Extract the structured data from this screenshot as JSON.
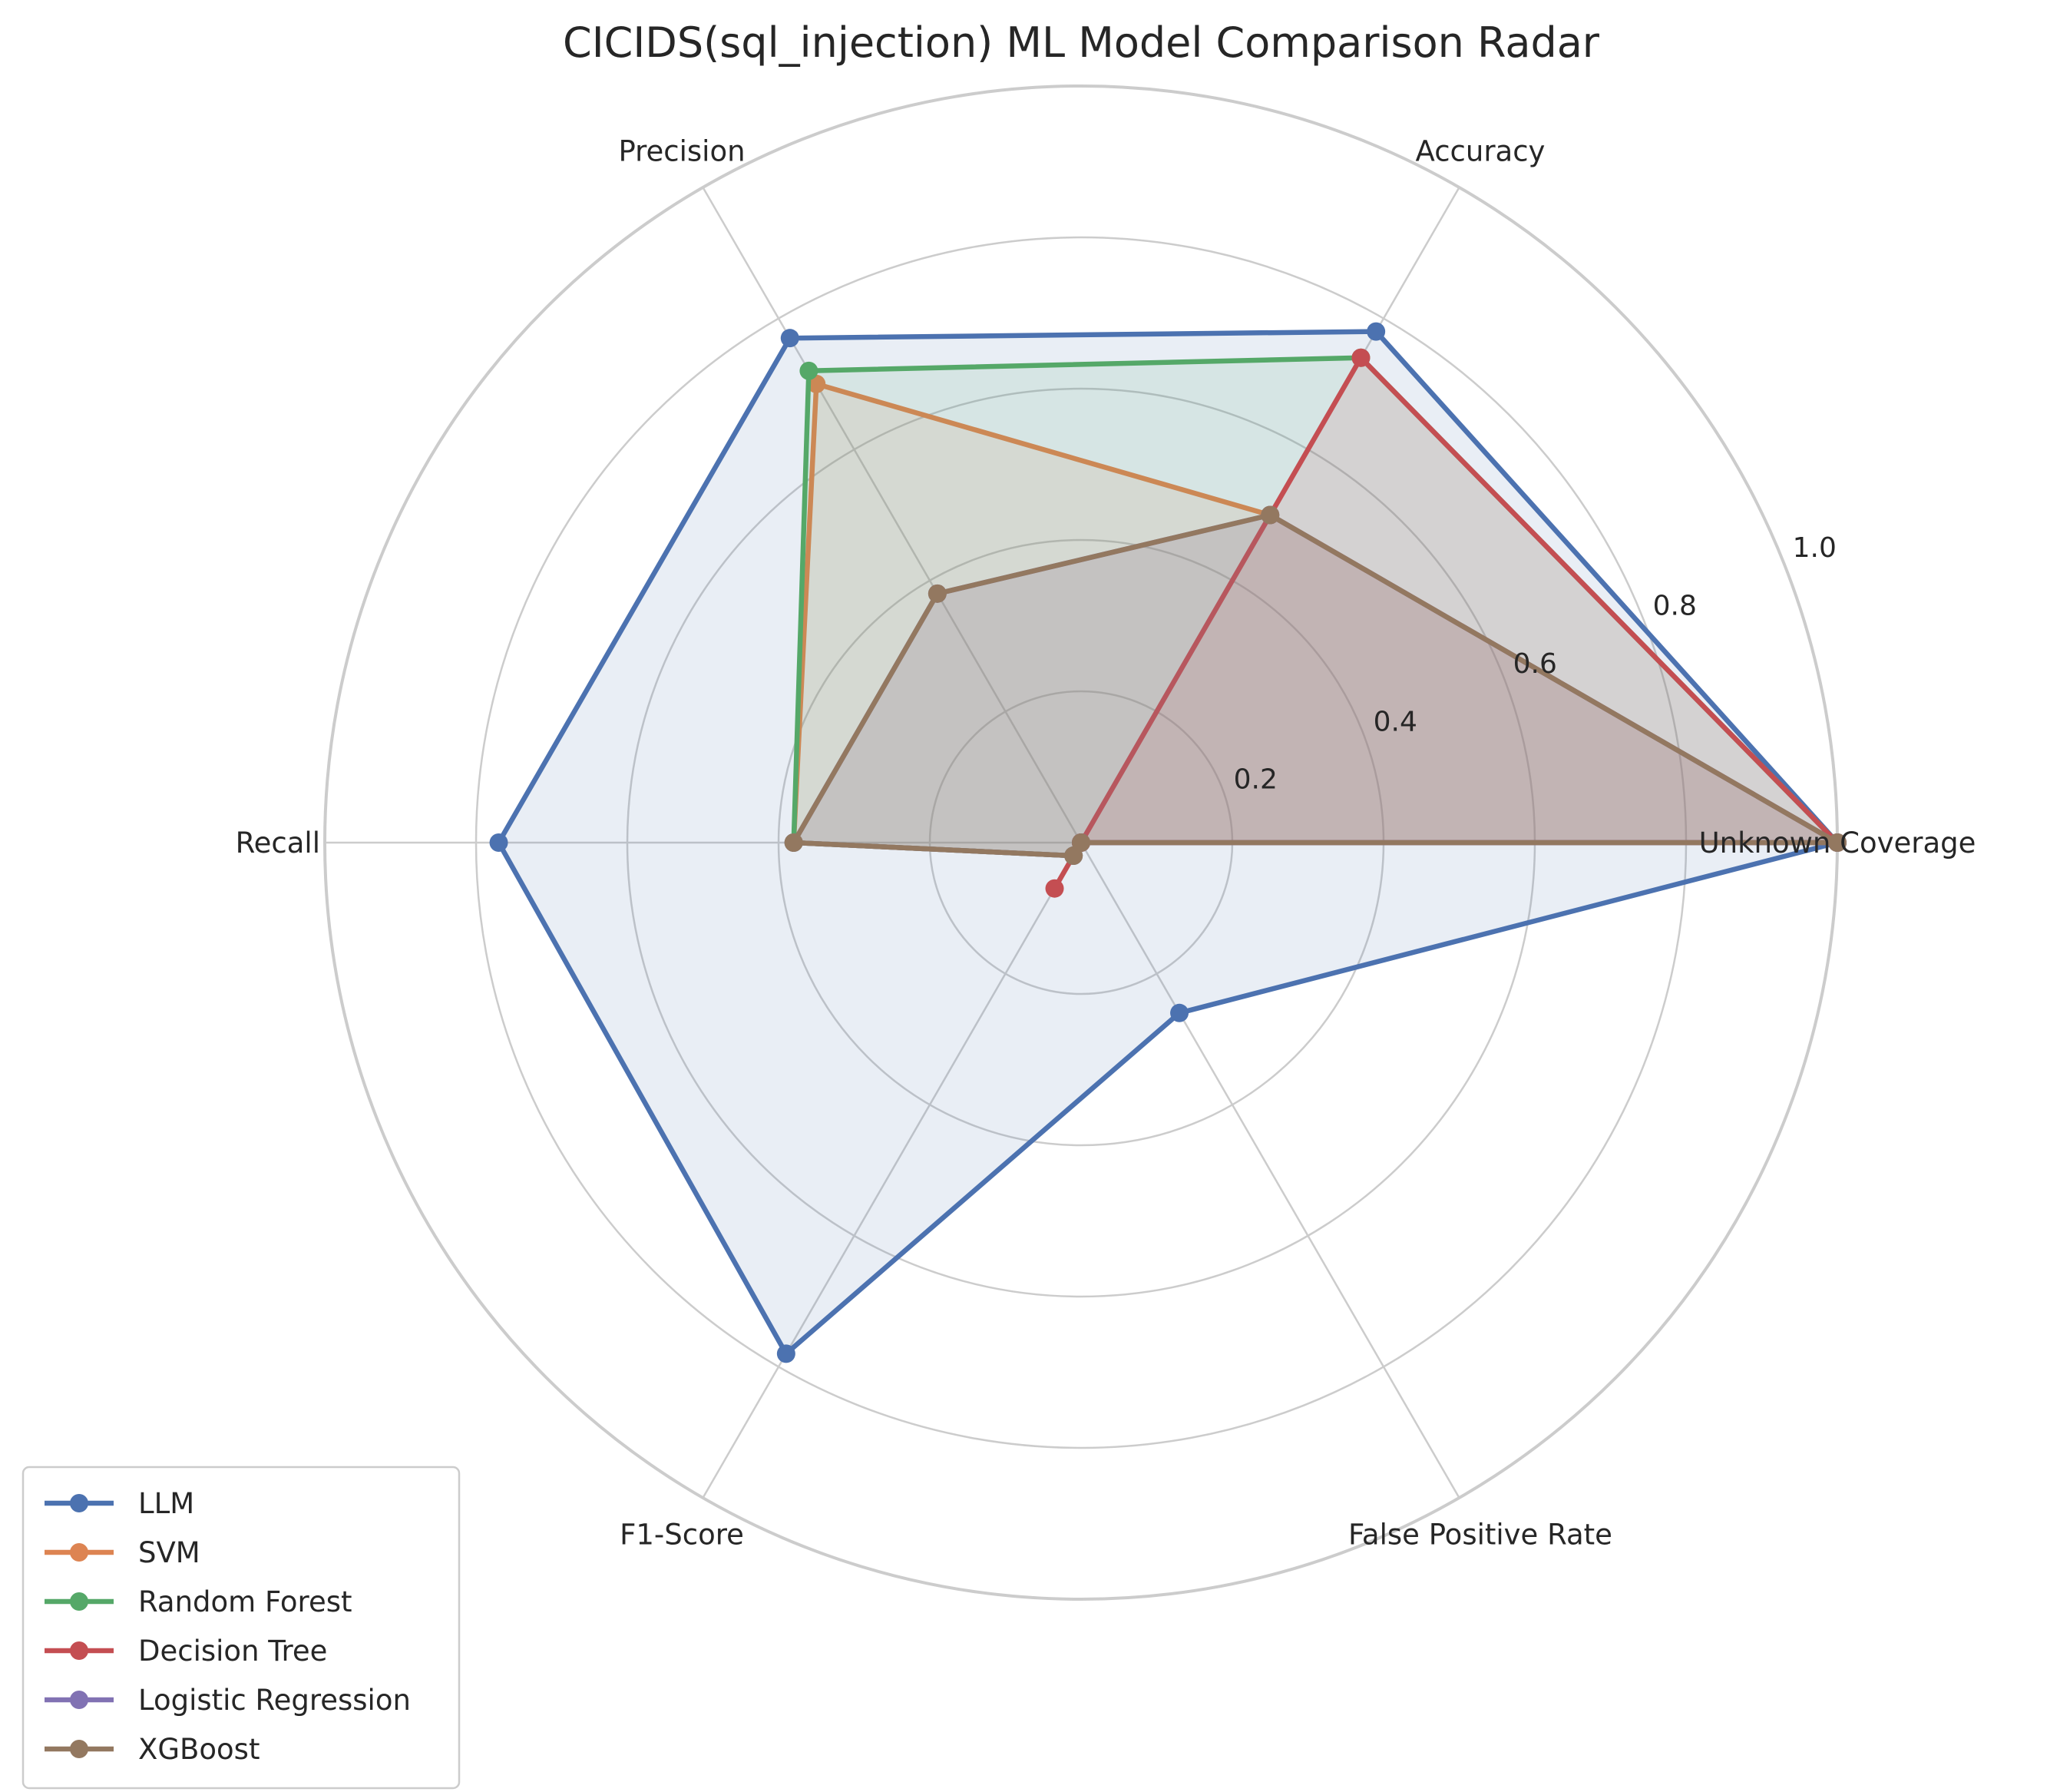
{
  "chart_data": {
    "type": "radar",
    "title": "CICIDS(sql_injection) ML Model Comparison Radar",
    "axes": [
      "Unknown Coverage",
      "Accuracy",
      "Precision",
      "Recall",
      "F1-Score",
      "False Positive Rate"
    ],
    "rlim": [
      0,
      1.0
    ],
    "r_ticks": [
      "0.2",
      "0.4",
      "0.6",
      "0.8",
      "1.0"
    ],
    "r_tick_values": [
      0.2,
      0.4,
      0.6,
      0.8,
      1.0
    ],
    "grid": true,
    "legend_position": "bottom-left",
    "series": [
      {
        "name": "LLM",
        "color": "#4c72b0",
        "values": [
          1.0,
          0.78,
          0.77,
          0.77,
          0.78,
          0.26
        ]
      },
      {
        "name": "SVM",
        "color": "#dd8452",
        "values": [
          1.0,
          0.5,
          0.7,
          0.38,
          0.02,
          0.0
        ]
      },
      {
        "name": "Random Forest",
        "color": "#55a868",
        "values": [
          1.0,
          0.74,
          0.72,
          0.38,
          0.02,
          0.0
        ]
      },
      {
        "name": "Decision Tree",
        "color": "#c44e52",
        "values": [
          1.0,
          0.74,
          0.0,
          0.0,
          0.07,
          0.0
        ]
      },
      {
        "name": "Logistic Regression",
        "color": "#8172b3",
        "values": [
          1.0,
          0.5,
          0.38,
          0.38,
          0.02,
          0.0
        ]
      },
      {
        "name": "XGBoost",
        "color": "#937860",
        "values": [
          1.0,
          0.5,
          0.38,
          0.38,
          0.02,
          0.0
        ]
      }
    ]
  }
}
